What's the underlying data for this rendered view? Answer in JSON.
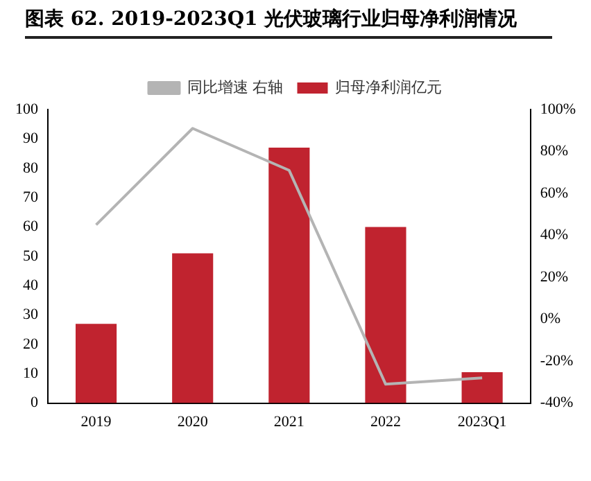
{
  "chart_data": {
    "type": "bar",
    "title": "图表 62. 2019-2023Q1 光伏玻璃行业归母净利润情况",
    "categories": [
      "2019",
      "2020",
      "2021",
      "2022",
      "2023Q1"
    ],
    "series": [
      {
        "name": "归母净利润亿元",
        "color": "#c0232f",
        "values": [
          27,
          51,
          87,
          60,
          10.5
        ]
      },
      {
        "name": "同比增速 右轴",
        "type": "line",
        "axis": "y2",
        "color": "#b4b4b4",
        "values": [
          45,
          91,
          71,
          -31,
          -28
        ]
      }
    ],
    "ylim": [
      0,
      100
    ],
    "yticks": [
      0,
      10,
      20,
      30,
      40,
      50,
      60,
      70,
      80,
      90,
      100
    ],
    "y2lim": [
      -40,
      100
    ],
    "y2ticks": [
      {
        "value": -40,
        "label": "-40%"
      },
      {
        "value": -20,
        "label": "-20%"
      },
      {
        "value": 0,
        "label": "0%"
      },
      {
        "value": 20,
        "label": "20%"
      },
      {
        "value": 40,
        "label": "40%"
      },
      {
        "value": 60,
        "label": "60%"
      },
      {
        "value": 80,
        "label": "80%"
      },
      {
        "value": 100,
        "label": "100%"
      }
    ],
    "grid": false,
    "legend": "top",
    "marker": "none"
  }
}
